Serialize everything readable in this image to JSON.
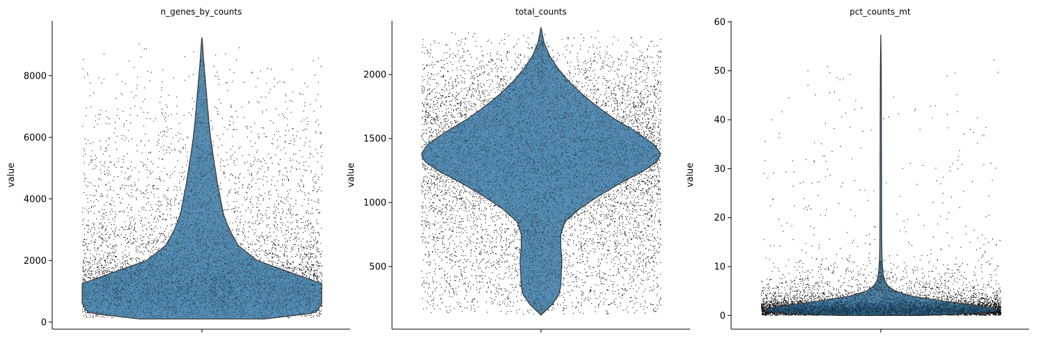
{
  "chart_data": [
    {
      "type": "violin",
      "title": "n_genes_by_counts",
      "xlabel": "",
      "ylabel": "value",
      "ylim": [
        -230,
        9780
      ],
      "yticks": [
        0,
        2000,
        4000,
        6000,
        8000
      ],
      "ytick_labels": [
        "0",
        "2000",
        "4000",
        "6000",
        "8000"
      ],
      "data_range": [
        100,
        9250
      ],
      "violin_profile": [
        [
          100,
          0.52
        ],
        [
          300,
          0.95
        ],
        [
          600,
          1.0
        ],
        [
          1000,
          1.0
        ],
        [
          1250,
          1.0
        ],
        [
          1600,
          0.75
        ],
        [
          2000,
          0.46
        ],
        [
          2500,
          0.3
        ],
        [
          3000,
          0.23
        ],
        [
          3500,
          0.18
        ],
        [
          4000,
          0.155
        ],
        [
          4500,
          0.13
        ],
        [
          5000,
          0.11
        ],
        [
          5500,
          0.09
        ],
        [
          6000,
          0.072
        ],
        [
          6500,
          0.058
        ],
        [
          7000,
          0.047
        ],
        [
          7500,
          0.036
        ],
        [
          8000,
          0.025
        ],
        [
          8500,
          0.014
        ],
        [
          9000,
          0.006
        ],
        [
          9250,
          0.0
        ]
      ],
      "jitter_distribution": [
        [
          150,
          600
        ],
        [
          500,
          1000
        ],
        [
          900,
          1250
        ],
        [
          1300,
          1300
        ],
        [
          1700,
          950
        ],
        [
          2200,
          520
        ],
        [
          2800,
          360
        ],
        [
          3500,
          250
        ],
        [
          4500,
          180
        ],
        [
          5500,
          120
        ],
        [
          6500,
          80
        ],
        [
          7500,
          45
        ],
        [
          8500,
          18
        ],
        [
          9200,
          0
        ]
      ],
      "grid": false,
      "legend": "none"
    },
    {
      "type": "violin",
      "title": "total_counts",
      "xlabel": "",
      "ylabel": "value",
      "ylim": [
        10,
        2420
      ],
      "yticks": [
        500,
        1000,
        1500,
        2000
      ],
      "ytick_labels": [
        "500",
        "1000",
        "1500",
        "2000"
      ],
      "data_range": [
        120,
        2370
      ],
      "violin_profile": [
        [
          120,
          0.0
        ],
        [
          200,
          0.09
        ],
        [
          280,
          0.15
        ],
        [
          350,
          0.165
        ],
        [
          450,
          0.17
        ],
        [
          550,
          0.175
        ],
        [
          650,
          0.165
        ],
        [
          750,
          0.165
        ],
        [
          850,
          0.2
        ],
        [
          950,
          0.32
        ],
        [
          1050,
          0.48
        ],
        [
          1150,
          0.66
        ],
        [
          1250,
          0.86
        ],
        [
          1320,
          0.97
        ],
        [
          1380,
          1.0
        ],
        [
          1450,
          0.95
        ],
        [
          1550,
          0.8
        ],
        [
          1650,
          0.62
        ],
        [
          1750,
          0.47
        ],
        [
          1850,
          0.34
        ],
        [
          1950,
          0.23
        ],
        [
          2050,
          0.14
        ],
        [
          2150,
          0.07
        ],
        [
          2250,
          0.025
        ],
        [
          2370,
          0.0
        ]
      ],
      "jitter_distribution": [
        [
          130,
          300
        ],
        [
          500,
          500
        ],
        [
          900,
          700
        ],
        [
          1100,
          1000
        ],
        [
          1300,
          1500
        ],
        [
          1400,
          1600
        ],
        [
          1600,
          1300
        ],
        [
          1800,
          900
        ],
        [
          2000,
          550
        ],
        [
          2200,
          250
        ],
        [
          2370,
          0
        ]
      ],
      "grid": false,
      "legend": "none"
    },
    {
      "type": "violin",
      "title": "pct_counts_mt",
      "xlabel": "",
      "ylabel": "value",
      "ylim": [
        -2.8,
        60.2
      ],
      "yticks": [
        0,
        10,
        20,
        30,
        40,
        50,
        60
      ],
      "ytick_labels": [
        "0",
        "10",
        "20",
        "30",
        "40",
        "50",
        "60"
      ],
      "data_range": [
        0,
        57.4
      ],
      "violin_profile": [
        [
          0,
          0.35
        ],
        [
          0.5,
          0.9
        ],
        [
          1.2,
          1.0
        ],
        [
          2,
          0.82
        ],
        [
          3,
          0.5
        ],
        [
          4,
          0.25
        ],
        [
          5,
          0.12
        ],
        [
          6,
          0.06
        ],
        [
          7,
          0.035
        ],
        [
          8,
          0.022
        ],
        [
          10,
          0.014
        ],
        [
          12,
          0.01
        ],
        [
          15,
          0.008
        ],
        [
          20,
          0.007
        ],
        [
          30,
          0.006
        ],
        [
          40,
          0.005
        ],
        [
          50,
          0.004
        ],
        [
          57.4,
          0.0
        ]
      ],
      "jitter_distribution": [
        [
          0.1,
          4000
        ],
        [
          1.0,
          9000
        ],
        [
          2.0,
          5000
        ],
        [
          3.0,
          1500
        ],
        [
          5.0,
          500
        ],
        [
          8.0,
          150
        ],
        [
          12.0,
          40
        ],
        [
          20.0,
          18
        ],
        [
          30.0,
          12
        ],
        [
          40.0,
          8
        ],
        [
          50.0,
          4
        ],
        [
          57,
          0
        ]
      ],
      "grid": false,
      "legend": "none"
    }
  ],
  "style": {
    "violin_fill": "#3274a1",
    "violin_edge": "#3d3d3d",
    "point_color": "#000000"
  }
}
